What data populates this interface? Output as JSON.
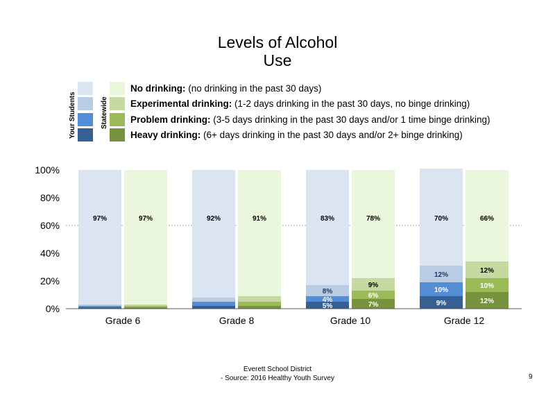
{
  "title_line1": "Levels of Alcohol",
  "title_line2": "Use",
  "legend_groups": {
    "your_students": "Your Students",
    "statewide": "Statewide"
  },
  "legend": [
    {
      "key": "No drinking:",
      "desc": "(no drinking in the past 30 days)",
      "your_color": "#dbe5f1",
      "state_color": "#ebf7dd"
    },
    {
      "key": "Experimental drinking:",
      "desc": "(1-2 days drinking in the past 30 days, no binge drinking)",
      "your_color": "#b8cce4",
      "state_color": "#c6d9a0"
    },
    {
      "key": "Problem drinking:",
      "desc": "(3-5 days drinking in the past 30 days and/or 1 time binge drinking)",
      "your_color": "#538dd5",
      "state_color": "#9bbb59"
    },
    {
      "key": "Heavy drinking:",
      "desc": "(6+ days drinking in the past 30 days and/or 2+ binge drinking)",
      "your_color": "#366092",
      "state_color": "#76923c"
    }
  ],
  "chart_data": {
    "type": "bar",
    "stacked": true,
    "categories": [
      "Grade 6",
      "Grade 8",
      "Grade 10",
      "Grade 12"
    ],
    "ylim": [
      0,
      100
    ],
    "yticks": [
      "0%",
      "20%",
      "40%",
      "60%",
      "80%",
      "100%"
    ],
    "reference_line": 60,
    "groups": [
      "Your Students",
      "Statewide"
    ],
    "series": [
      {
        "name": "No drinking",
        "your_students": [
          97,
          92,
          83,
          70
        ],
        "statewide": [
          97,
          91,
          78,
          66
        ]
      },
      {
        "name": "Experimental drinking",
        "your_students": [
          1,
          3,
          8,
          12
        ],
        "statewide": [
          1,
          4,
          9,
          12
        ]
      },
      {
        "name": "Problem drinking",
        "your_students": [
          1,
          3,
          4,
          10
        ],
        "statewide": [
          1,
          3,
          6,
          10
        ]
      },
      {
        "name": "Heavy drinking",
        "your_students": [
          1,
          2,
          5,
          9
        ],
        "statewide": [
          1,
          2,
          7,
          12
        ]
      }
    ],
    "labels": {
      "your_students": [
        [
          "97%",
          "92%",
          "83%",
          "70%"
        ],
        [
          "",
          "",
          "8%",
          "12%"
        ],
        [
          "",
          "",
          "4%",
          "10%"
        ],
        [
          "",
          "",
          "5%",
          "9%"
        ]
      ],
      "statewide": [
        [
          "97%",
          "91%",
          "78%",
          "66%"
        ],
        [
          "",
          "",
          "9%",
          "12%"
        ],
        [
          "",
          "",
          "6%",
          "10%"
        ],
        [
          "",
          "",
          "7%",
          "12%"
        ]
      ]
    }
  },
  "footer_line1": "Everett School District",
  "footer_line2": "- Source: 2016 Healthy  Youth Survey",
  "page_number": "9"
}
